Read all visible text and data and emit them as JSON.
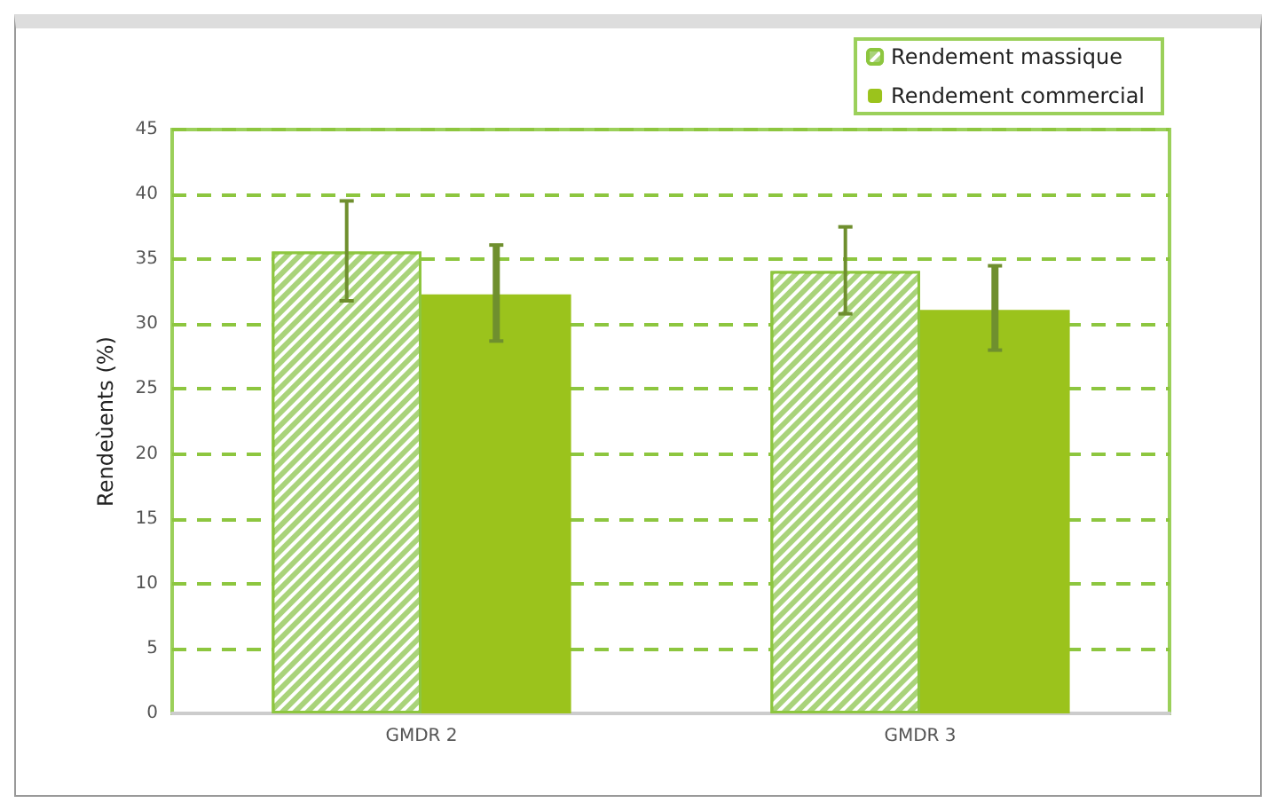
{
  "chart_data": {
    "type": "bar",
    "ylabel": "Rendeùents (%)",
    "categories": [
      "GMDR 2",
      "GMDR 3"
    ],
    "series": [
      {
        "name": "Rendement massique",
        "color": "#a9d37a",
        "values": [
          35.6,
          34.1
        ],
        "errors": [
          [
            31.8,
            39.5
          ],
          [
            30.8,
            37.5
          ]
        ]
      },
      {
        "name": "Rendement commercial",
        "color": "#9bc31c",
        "values": [
          32.3,
          31.1
        ],
        "errors": [
          [
            28.7,
            36.1
          ],
          [
            28.0,
            34.5
          ]
        ]
      }
    ],
    "ylim": [
      0,
      45
    ],
    "yticks": [
      0,
      5,
      10,
      15,
      20,
      25,
      30,
      35,
      40,
      45
    ],
    "grid": "y",
    "legend": "top right"
  }
}
